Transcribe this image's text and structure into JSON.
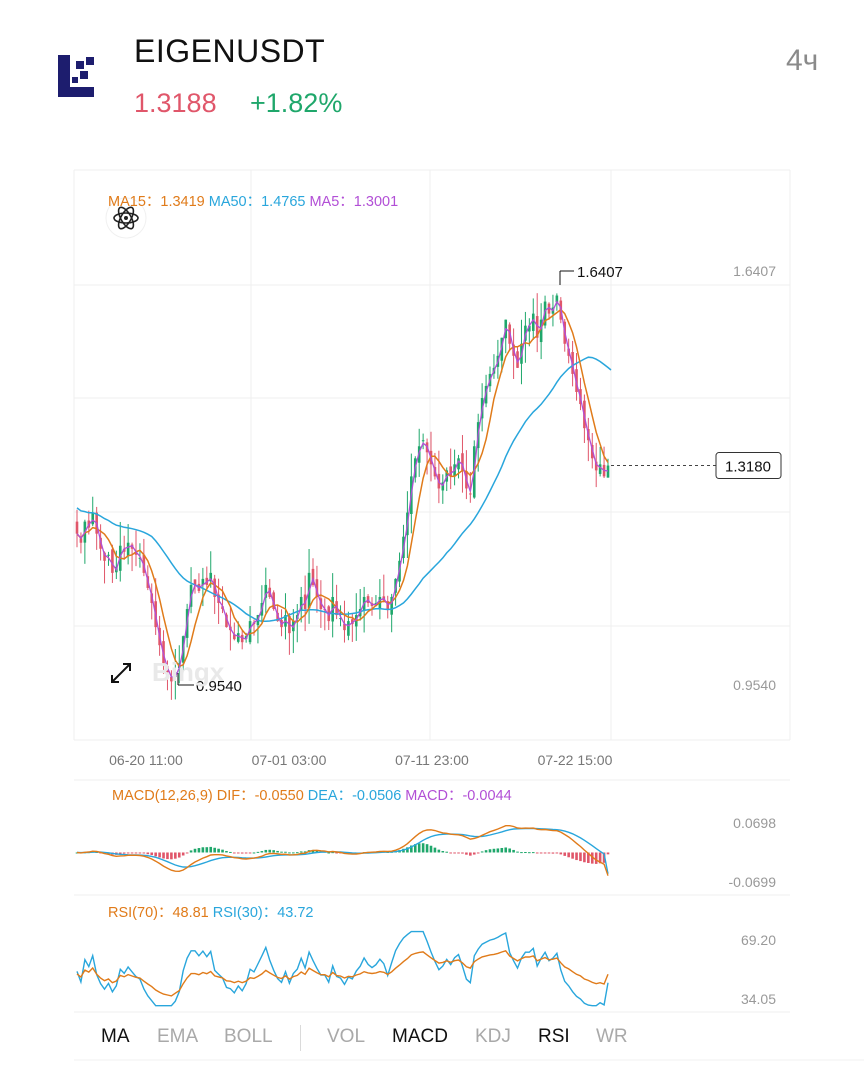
{
  "header": {
    "symbol": "EIGENUSDT",
    "price": "1.3188",
    "change": "+1.82%",
    "interval": "4ч"
  },
  "colors": {
    "up": "#1fa76b",
    "down": "#e0566a",
    "ma5": "#b24fd6",
    "ma15": "#e07b1a",
    "ma50": "#29a6dc",
    "rsi70": "#e07b1a",
    "rsi30": "#29a6dc"
  },
  "main_panel": {
    "ma15_label": "MA15：1.3419",
    "ma50_label": "MA50：1.4765",
    "ma5_label": "MA5：1.3001",
    "max_label": "1.6407",
    "min_label": "0.9540",
    "current_label": "1.3180",
    "axis_top": "1.6407",
    "axis_bottom": "0.9540",
    "watermark": "Bingx",
    "expand_icon": "expand-arrows-icon",
    "indicator_icon": "atom-icon"
  },
  "macd_panel": {
    "title": "MACD(12,26,9)",
    "dif": "DIF：-0.0550",
    "dea": "DEA：-0.0506",
    "macd": "MACD：-0.0044",
    "axis_top": "0.0698",
    "axis_bottom": "-0.0699"
  },
  "rsi_panel": {
    "rsi70": "RSI(70)：48.81",
    "rsi30": "RSI(30)：43.72",
    "axis_top": "69.20",
    "axis_bottom": "34.05"
  },
  "tabs": [
    {
      "label": "MA",
      "active": true
    },
    {
      "label": "EMA",
      "active": false
    },
    {
      "label": "BOLL",
      "active": false
    },
    {
      "label": "VOL",
      "active": false
    },
    {
      "label": "MACD",
      "active": true
    },
    {
      "label": "KDJ",
      "active": false
    },
    {
      "label": "RSI",
      "active": true
    },
    {
      "label": "WR",
      "active": false
    }
  ],
  "chart_data": {
    "type": "candlestick",
    "x_ticks": [
      "06-20 11:00",
      "07-01 03:00",
      "07-11 23:00",
      "07-22 15:00"
    ],
    "y_range": [
      0.954,
      1.6407
    ],
    "close_series": [
      1.205,
      1.19,
      1.225,
      1.215,
      1.24,
      1.205,
      1.18,
      1.16,
      1.17,
      1.14,
      1.15,
      1.185,
      1.175,
      1.19,
      1.18,
      1.17,
      1.165,
      1.14,
      1.115,
      1.09,
      1.05,
      1.02,
      0.99,
      0.975,
      0.96,
      0.975,
      0.99,
      1.035,
      1.08,
      1.12,
      1.12,
      1.11,
      1.13,
      1.12,
      1.14,
      1.1,
      1.09,
      1.08,
      1.05,
      1.045,
      1.03,
      1.04,
      1.025,
      1.035,
      1.06,
      1.055,
      1.07,
      1.09,
      1.12,
      1.1,
      1.08,
      1.06,
      1.05,
      1.07,
      1.04,
      1.06,
      1.07,
      1.1,
      1.08,
      1.14,
      1.12,
      1.1,
      1.08,
      1.08,
      1.06,
      1.1,
      1.07,
      1.065,
      1.045,
      1.06,
      1.055,
      1.07,
      1.08,
      1.1,
      1.09,
      1.085,
      1.09,
      1.1,
      1.095,
      1.08,
      1.1,
      1.13,
      1.16,
      1.2,
      1.24,
      1.3,
      1.33,
      1.35,
      1.36,
      1.34,
      1.32,
      1.3,
      1.28,
      1.29,
      1.31,
      1.3,
      1.32,
      1.33,
      1.31,
      1.28,
      1.27,
      1.35,
      1.39,
      1.43,
      1.45,
      1.47,
      1.48,
      1.5,
      1.53,
      1.56,
      1.52,
      1.5,
      1.48,
      1.52,
      1.55,
      1.55,
      1.57,
      1.53,
      1.56,
      1.59,
      1.57,
      1.58,
      1.6,
      1.56,
      1.52,
      1.5,
      1.47,
      1.44,
      1.42,
      1.38,
      1.36,
      1.33,
      1.31,
      1.32,
      1.3,
      1.318
    ],
    "ma5_last": 1.3001,
    "ma15_last": 1.3419,
    "ma50_last": 1.4765,
    "max": 1.6407,
    "min": 0.954,
    "last": 1.318,
    "macd": {
      "dif": -0.055,
      "dea": -0.0506,
      "hist": -0.0044,
      "y_range": [
        -0.0699,
        0.0698
      ]
    },
    "rsi": {
      "rsi70": 48.81,
      "rsi30": 43.72,
      "y_range": [
        34.05,
        69.2
      ]
    }
  }
}
